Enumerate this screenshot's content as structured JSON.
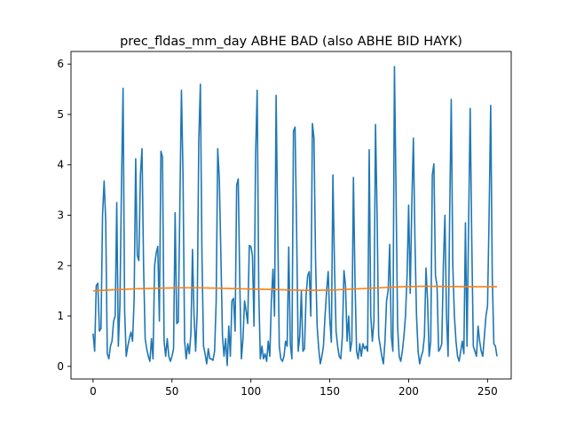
{
  "chart_data": {
    "type": "line",
    "title": "prec_fldas_mm_day ABHE BAD (also ABHE BID HAYK)",
    "xlabel": "",
    "ylabel": "",
    "xlim": [
      -14,
      265
    ],
    "ylim": [
      -0.25,
      6.25
    ],
    "xticks": [
      0,
      50,
      100,
      150,
      200,
      250
    ],
    "yticks": [
      0,
      1,
      2,
      3,
      4,
      5,
      6
    ],
    "grid": false,
    "legend": "none",
    "colors": {
      "series_0": "#1f77b4",
      "series_1": "#ff7f0e"
    },
    "series": [
      {
        "values": [
          0.65,
          0.3,
          1.6,
          1.65,
          0.7,
          0.75,
          3.0,
          3.68,
          2.9,
          0.25,
          0.15,
          0.4,
          0.5,
          0.9,
          1.0,
          3.25,
          0.4,
          1.2,
          3.6,
          5.52,
          1.1,
          0.2,
          0.4,
          0.55,
          0.68,
          0.5,
          1.3,
          4.12,
          2.2,
          2.1,
          3.8,
          4.32,
          2.0,
          0.55,
          0.35,
          0.2,
          0.1,
          0.55,
          0.15,
          2.0,
          2.25,
          2.38,
          0.9,
          4.27,
          4.15,
          0.5,
          0.2,
          0.55,
          0.2,
          0.1,
          0.2,
          0.35,
          3.05,
          0.85,
          0.88,
          3.2,
          5.48,
          3.8,
          0.5,
          0.15,
          0.45,
          0.25,
          0.65,
          2.32,
          1.0,
          0.3,
          1.1,
          4.5,
          5.6,
          2.2,
          0.4,
          0.25,
          0.05,
          0.35,
          0.15,
          0.15,
          0.12,
          0.3,
          1.27,
          4.32,
          3.72,
          2.2,
          0.6,
          0.2,
          0.55,
          0.02,
          0.8,
          0.2,
          1.3,
          1.35,
          0.7,
          3.6,
          3.72,
          1.6,
          0.15,
          0.55,
          1.3,
          1.1,
          0.85,
          2.4,
          2.38,
          2.2,
          0.8,
          4.2,
          5.48,
          1.5,
          0.15,
          0.4,
          0.15,
          0.25,
          0.1,
          0.5,
          0.2,
          1.3,
          1.93,
          1.0,
          5.38,
          2.8,
          0.4,
          0.15,
          0.1,
          0.2,
          0.5,
          0.4,
          2.37,
          0.45,
          0.15,
          4.67,
          4.75,
          2.7,
          0.3,
          0.6,
          1.5,
          0.3,
          0.35,
          1.4,
          1.8,
          1.88,
          1.0,
          4.82,
          4.53,
          2.1,
          0.8,
          0.35,
          0.05,
          0.2,
          0.4,
          1.0,
          1.5,
          1.88,
          0.95,
          0.48,
          3.8,
          2.0,
          0.7,
          0.4,
          0.2,
          0.15,
          0.6,
          1.9,
          1.6,
          0.5,
          1.0,
          0.3,
          0.5,
          3.75,
          1.7,
          0.3,
          0.15,
          0.45,
          0.2,
          0.45,
          0.35,
          0.4,
          0.3,
          4.3,
          1.0,
          0.5,
          0.9,
          4.8,
          3.0,
          0.6,
          0.4,
          0.2,
          0.05,
          0.5,
          1.3,
          1.5,
          2.42,
          0.6,
          0.3,
          5.95,
          3.5,
          0.8,
          0.2,
          0.1,
          0.3,
          0.6,
          1.0,
          1.8,
          3.2,
          1.45,
          3.2,
          4.53,
          2.5,
          1.0,
          0.3,
          0.05,
          0.2,
          0.3,
          0.6,
          1.95,
          1.3,
          0.2,
          0.5,
          3.8,
          4.02,
          1.8,
          1.6,
          0.3,
          0.35,
          0.45,
          2.0,
          3.0,
          1.0,
          0.2,
          3.0,
          5.3,
          2.0,
          1.0,
          0.5,
          0.2,
          0.1,
          0.3,
          0.5,
          0.25,
          2.85,
          0.4,
          2.8,
          5.12,
          2.5,
          0.4,
          0.3,
          0.2,
          0.8,
          0.5,
          0.3,
          0.2,
          0.6,
          1.0,
          1.2,
          3.0,
          5.18,
          1.8,
          0.45,
          0.4,
          0.2
        ]
      },
      {
        "values": [
          1.5,
          1.51,
          1.52,
          1.53,
          1.54,
          1.545,
          1.55,
          1.555,
          1.56,
          1.56,
          1.56,
          1.555,
          1.55,
          1.545,
          1.54,
          1.535,
          1.53,
          1.525,
          1.52,
          1.515,
          1.51,
          1.51,
          1.515,
          1.52,
          1.53,
          1.54,
          1.55,
          1.56,
          1.57,
          1.58,
          1.585,
          1.59,
          1.59,
          1.585,
          1.585,
          1.58,
          1.58,
          1.58,
          1.58
        ]
      }
    ]
  }
}
